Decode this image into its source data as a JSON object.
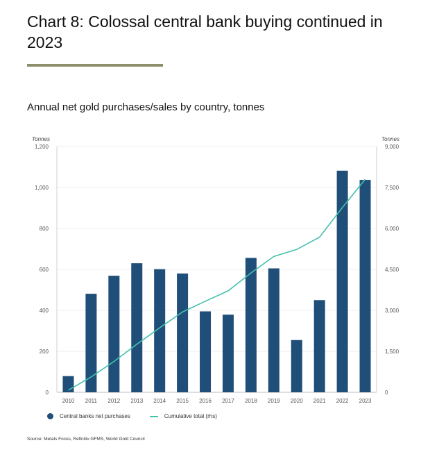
{
  "header": {
    "title": "Chart 8: Colossal central bank buying continued in 2023",
    "subtitle": "Annual net gold purchases/sales by country, tonnes"
  },
  "colors": {
    "bar": "#1f4e79",
    "line": "#45c1ac",
    "rule": "#8f8e6a",
    "grid": "#ececec"
  },
  "chart_data": {
    "type": "bar",
    "title": "Annual net gold purchases/sales by country, tonnes",
    "categories": [
      "2010",
      "2011",
      "2012",
      "2013",
      "2014",
      "2015",
      "2016",
      "2017",
      "2018",
      "2019",
      "2020",
      "2021",
      "2022",
      "2023"
    ],
    "series": [
      {
        "name": "Central banks net purchases",
        "type": "bar",
        "axis": "left",
        "values": [
          79,
          481,
          569,
          630,
          601,
          580,
          395,
          379,
          656,
          605,
          255,
          450,
          1082,
          1037
        ]
      },
      {
        "name": "Cumulative total (rhs)",
        "type": "line",
        "axis": "right",
        "values": [
          79,
          560,
          1129,
          1759,
          2360,
          2940,
          3335,
          3714,
          4370,
          4975,
          5230,
          5680,
          6762,
          7799
        ]
      }
    ],
    "left_axis": {
      "label": "Tonnes",
      "ylim": [
        0,
        1200
      ],
      "ticks": [
        0,
        200,
        400,
        600,
        800,
        1000,
        1200
      ],
      "tick_labels": [
        "0",
        "200",
        "400",
        "600",
        "800",
        "1,000",
        "1,200"
      ]
    },
    "right_axis": {
      "label": "Tonnes",
      "ylim": [
        0,
        9000
      ],
      "ticks": [
        0,
        1500,
        3000,
        4500,
        6000,
        7500,
        9000
      ],
      "tick_labels": [
        "0",
        "1,500",
        "3,000",
        "4,500",
        "6,000",
        "7,500",
        "9,000"
      ]
    },
    "grid": true,
    "legend": "bottom-left",
    "source": "Source: Metals Focus, Refinitiv GFMS, World Gold Council"
  }
}
